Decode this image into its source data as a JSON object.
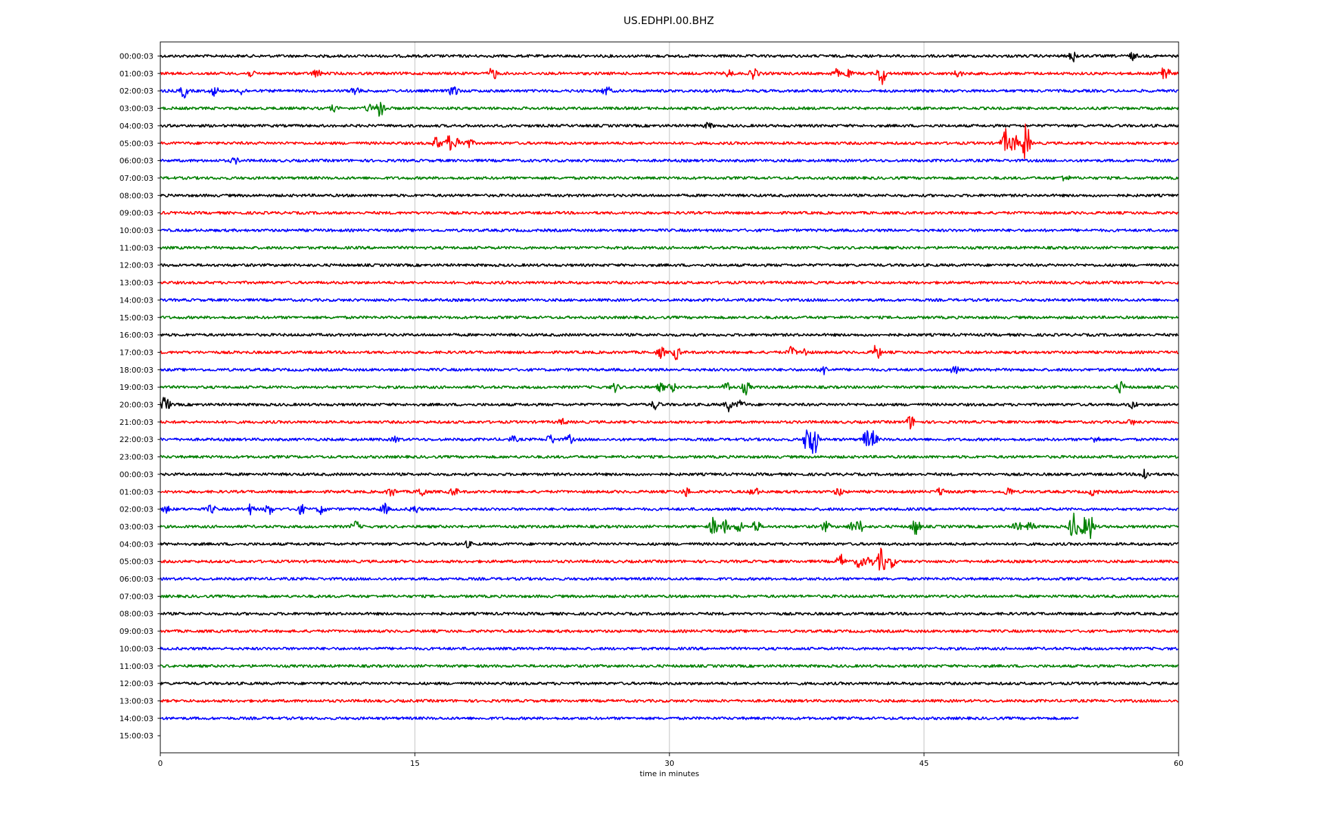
{
  "chart_data": {
    "type": "line",
    "title": "US.EDHPI.00.BHZ",
    "xlabel": "time in minutes",
    "ylabel": "",
    "xlim": [
      0,
      60
    ],
    "x_ticks": [
      "0",
      "15",
      "30",
      "45",
      "60"
    ],
    "grid": "vertical lines at 15, 30, 45",
    "line_colors": [
      "#000000",
      "#ff0000",
      "#0000ff",
      "#008000"
    ],
    "row_labels": [
      "00:00:03",
      "01:00:03",
      "02:00:03",
      "03:00:03",
      "04:00:03",
      "05:00:03",
      "06:00:03",
      "07:00:03",
      "08:00:03",
      "09:00:03",
      "10:00:03",
      "11:00:03",
      "12:00:03",
      "13:00:03",
      "14:00:03",
      "15:00:03",
      "16:00:03",
      "17:00:03",
      "18:00:03",
      "19:00:03",
      "20:00:03",
      "21:00:03",
      "22:00:03",
      "23:00:03",
      "00:00:03",
      "01:00:03",
      "02:00:03",
      "03:00:03",
      "04:00:03",
      "05:00:03",
      "06:00:03",
      "07:00:03",
      "08:00:03",
      "09:00:03",
      "10:00:03",
      "11:00:03",
      "12:00:03",
      "13:00:03",
      "14:00:03",
      "15:00:03"
    ],
    "series": [
      {
        "row": 0,
        "end": 60,
        "events": [
          [
            53.8,
            8
          ],
          [
            57.3,
            5
          ]
        ]
      },
      {
        "row": 1,
        "end": 60,
        "events": [
          [
            5.3,
            4
          ],
          [
            9.2,
            6
          ],
          [
            19.6,
            10
          ],
          [
            33.5,
            5
          ],
          [
            35,
            9
          ],
          [
            39.8,
            6
          ],
          [
            40.5,
            5
          ],
          [
            42.5,
            18
          ],
          [
            47,
            5
          ],
          [
            59.1,
            5
          ],
          [
            59.2,
            18
          ]
        ]
      },
      {
        "row": 2,
        "end": 60,
        "events": [
          [
            1.4,
            10
          ],
          [
            3.2,
            7
          ],
          [
            4.8,
            5
          ],
          [
            11.5,
            8
          ],
          [
            17.3,
            10
          ],
          [
            26.3,
            7
          ]
        ]
      },
      {
        "row": 3,
        "end": 60,
        "events": [
          [
            10.2,
            4
          ],
          [
            12.3,
            5
          ],
          [
            13,
            16
          ]
        ]
      },
      {
        "row": 4,
        "end": 60,
        "events": [
          [
            32.3,
            4
          ]
        ]
      },
      {
        "row": 5,
        "end": 60,
        "events": [
          [
            16.3,
            10
          ],
          [
            17,
            12
          ],
          [
            17.6,
            10
          ],
          [
            18.2,
            6
          ],
          [
            49.8,
            20
          ],
          [
            50.3,
            15
          ],
          [
            51,
            32
          ]
        ]
      },
      {
        "row": 6,
        "end": 60,
        "events": [
          [
            4.4,
            4
          ]
        ]
      },
      {
        "row": 7,
        "end": 60,
        "events": [
          [
            53.3,
            5
          ]
        ]
      },
      {
        "row": 8,
        "end": 60,
        "events": []
      },
      {
        "row": 9,
        "end": 60,
        "events": []
      },
      {
        "row": 10,
        "end": 60,
        "events": []
      },
      {
        "row": 11,
        "end": 60,
        "events": []
      },
      {
        "row": 12,
        "end": 60,
        "events": []
      },
      {
        "row": 13,
        "end": 60,
        "events": []
      },
      {
        "row": 14,
        "end": 60,
        "events": []
      },
      {
        "row": 15,
        "end": 60,
        "events": []
      },
      {
        "row": 16,
        "end": 60,
        "events": []
      },
      {
        "row": 17,
        "end": 60,
        "events": [
          [
            29.5,
            8
          ],
          [
            30.4,
            10
          ],
          [
            37.2,
            8
          ],
          [
            38,
            6
          ],
          [
            42.2,
            12
          ]
        ]
      },
      {
        "row": 18,
        "end": 60,
        "events": [
          [
            39.1,
            6
          ],
          [
            46.8,
            6
          ]
        ]
      },
      {
        "row": 19,
        "end": 60,
        "events": [
          [
            26.8,
            6
          ],
          [
            29.5,
            6
          ],
          [
            30.2,
            6
          ],
          [
            33.4,
            7
          ],
          [
            34.5,
            10
          ],
          [
            56.6,
            8
          ]
        ]
      },
      {
        "row": 20,
        "end": 60,
        "events": [
          [
            0.3,
            14
          ],
          [
            29.2,
            7
          ],
          [
            33.5,
            9
          ],
          [
            34.2,
            6
          ],
          [
            57.3,
            5
          ]
        ]
      },
      {
        "row": 21,
        "end": 60,
        "events": [
          [
            23.7,
            4
          ],
          [
            44.2,
            10
          ],
          [
            57.2,
            4
          ]
        ]
      },
      {
        "row": 22,
        "end": 60,
        "events": [
          [
            13.9,
            4
          ],
          [
            20.8,
            4
          ],
          [
            23,
            7
          ],
          [
            24.1,
            6
          ],
          [
            38.2,
            32
          ],
          [
            38.5,
            26
          ],
          [
            41.6,
            14
          ],
          [
            42,
            12
          ],
          [
            55.1,
            5
          ]
        ]
      },
      {
        "row": 23,
        "end": 60,
        "events": []
      },
      {
        "row": 24,
        "end": 60,
        "events": [
          [
            58,
            10
          ]
        ]
      },
      {
        "row": 25,
        "end": 60,
        "events": [
          [
            13.6,
            7
          ],
          [
            15.4,
            8
          ],
          [
            17.3,
            6
          ],
          [
            31,
            6
          ],
          [
            35,
            7
          ],
          [
            40,
            6
          ],
          [
            46,
            6
          ],
          [
            50,
            7
          ],
          [
            55,
            6
          ]
        ]
      },
      {
        "row": 26,
        "end": 60,
        "events": [
          [
            0.4,
            5
          ],
          [
            3,
            6
          ],
          [
            5.3,
            7
          ],
          [
            6.4,
            8
          ],
          [
            8.3,
            7
          ],
          [
            9.5,
            7
          ],
          [
            13.2,
            8
          ],
          [
            15,
            6
          ]
        ]
      },
      {
        "row": 27,
        "end": 60,
        "events": [
          [
            11.5,
            8
          ],
          [
            32.6,
            14
          ],
          [
            33.3,
            10
          ],
          [
            34.1,
            8
          ],
          [
            35.1,
            10
          ],
          [
            39.2,
            7
          ],
          [
            40.8,
            7
          ],
          [
            41.2,
            10
          ],
          [
            44.5,
            14
          ],
          [
            50.5,
            7
          ],
          [
            51.3,
            7
          ],
          [
            53.8,
            22
          ],
          [
            54.4,
            14
          ],
          [
            54.8,
            18
          ]
        ]
      },
      {
        "row": 28,
        "end": 60,
        "events": [
          [
            18.1,
            4
          ]
        ]
      },
      {
        "row": 29,
        "end": 60,
        "events": [
          [
            40.1,
            10
          ],
          [
            41.2,
            10
          ],
          [
            41.8,
            8
          ],
          [
            42.5,
            20
          ],
          [
            43.1,
            8
          ]
        ]
      },
      {
        "row": 30,
        "end": 60,
        "events": []
      },
      {
        "row": 31,
        "end": 60,
        "events": []
      },
      {
        "row": 32,
        "end": 60,
        "events": []
      },
      {
        "row": 33,
        "end": 60,
        "events": []
      },
      {
        "row": 34,
        "end": 60,
        "events": []
      },
      {
        "row": 35,
        "end": 60,
        "events": []
      },
      {
        "row": 36,
        "end": 60,
        "events": []
      },
      {
        "row": 37,
        "end": 60,
        "events": []
      },
      {
        "row": 38,
        "end": 54.1,
        "events": []
      },
      {
        "row": 39,
        "end": 0,
        "events": []
      }
    ]
  }
}
